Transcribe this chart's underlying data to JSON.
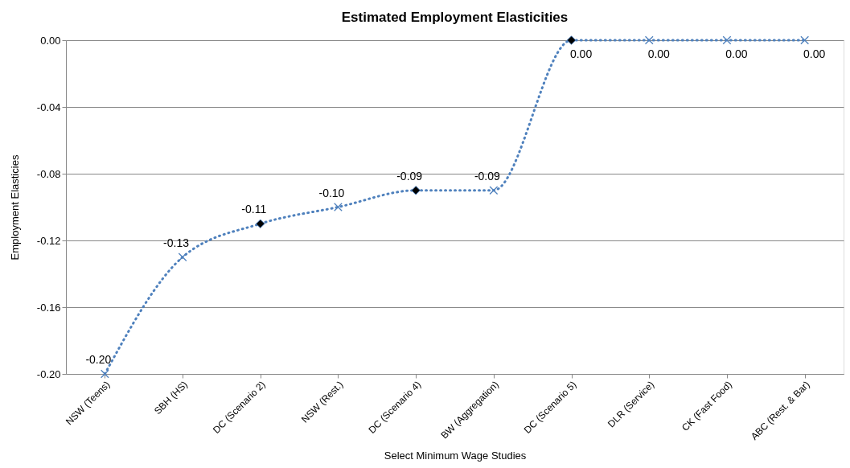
{
  "chart_data": {
    "type": "line",
    "title": "Estimated Employment Elasticities",
    "xlabel": "Select Minimum Wage Studies",
    "ylabel": "Employment  Elasticies",
    "categories": [
      "NSW (Teens)",
      "SBH (HS)",
      "DC (Scenario 2)",
      "NSW (Rest.)",
      "DC (Scenario 4)",
      "BW (Aggregation)",
      "DC (Scenario 5)",
      "DLR (Service)",
      "CK (Fast Food)",
      "ABC (Rest. & Bar)"
    ],
    "series": [
      {
        "color": "#4f81bd",
        "line_style": "dotted",
        "marker": "none",
        "values": [
          -0.2,
          -0.13,
          -0.11,
          -0.1,
          -0.09,
          -0.09,
          0.0,
          0.0,
          0.0,
          0.0
        ],
        "value_labels": [
          "-0.20",
          "-0.13",
          "-0.11",
          "-0.10",
          "-0.09",
          "-0.09",
          "0.00",
          "0.00",
          "0.00",
          "0.00"
        ]
      },
      {
        "type": "scatter",
        "color": "#4f81bd",
        "marker": "cross",
        "x": [
          "NSW (Teens)",
          "SBH (HS)",
          "NSW (Rest.)",
          "BW (Aggregation)",
          "DLR (Service)",
          "CK (Fast Food)",
          "ABC (Rest. & Bar)"
        ],
        "values": [
          -0.2,
          -0.13,
          -0.1,
          -0.09,
          0.0,
          0.0,
          0.0
        ]
      },
      {
        "type": "scatter",
        "color": "#000000",
        "marker": "diamond",
        "x": [
          "DC (Scenario 2)",
          "DC (Scenario 4)",
          "DC (Scenario 5)"
        ],
        "values": [
          -0.11,
          -0.09,
          0.0
        ]
      }
    ],
    "ylim": [
      -0.2,
      0.0
    ],
    "yticks": [
      {
        "value": 0.0,
        "label": "0.00"
      },
      {
        "value": -0.04,
        "label": "-0.04"
      },
      {
        "value": -0.08,
        "label": "-0.08"
      },
      {
        "value": -0.12,
        "label": "-0.12"
      },
      {
        "value": -0.16,
        "label": "-0.16"
      },
      {
        "value": -0.2,
        "label": "-0.20"
      }
    ],
    "grid": "y"
  }
}
